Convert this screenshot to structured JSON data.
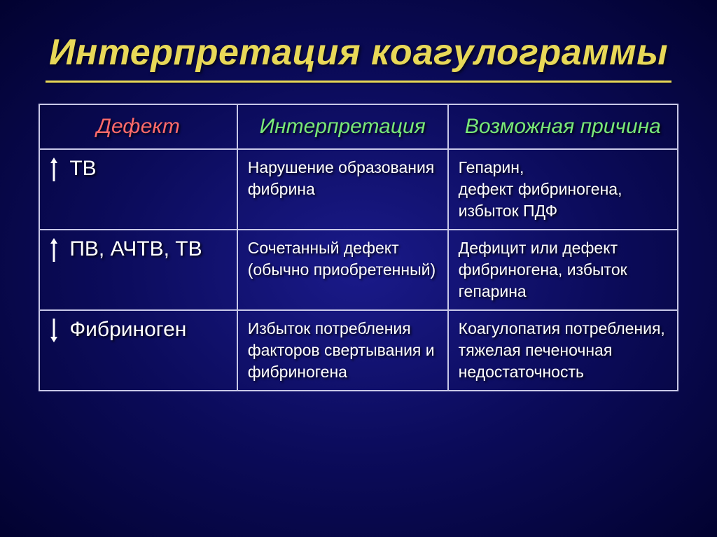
{
  "title": "Интерпретация коагулограммы",
  "colors": {
    "title_color": "#e8d858",
    "header_defect_color": "#ff6a6a",
    "header_other_color": "#78e878",
    "cell_text_color": "#ffffff",
    "border_color": "#c8c8e8",
    "bg_gradient_inner": "#1a1a8a",
    "bg_gradient_mid": "#0b0b5a",
    "bg_gradient_outer": "#020230"
  },
  "table": {
    "headers": {
      "defect": "Дефект",
      "interpretation": "Интерпретация",
      "cause": "Возможная причина"
    },
    "header_fontsize": 30,
    "defect_fontsize": 30,
    "body_fontsize": 23,
    "column_widths_pct": [
      31,
      33,
      36
    ],
    "rows": [
      {
        "arrow": "up",
        "defect": "ТВ",
        "interpretation": "Нарушение образования фибрина",
        "cause": "Гепарин,\nдефект фибриногена, избыток ПДФ"
      },
      {
        "arrow": "up",
        "defect": "ПВ, АЧТВ, ТВ",
        "interpretation": "Сочетанный дефект\n(обычно приобретенный)",
        "cause": "Дефицит или дефект фибриногена, избыток гепарина"
      },
      {
        "arrow": "down",
        "defect": "Фибриноген",
        "interpretation": "Избыток потребления факторов свертывания и фибриногена",
        "cause": "Коагулопатия потребления,\nтяжелая печеночная недостаточность"
      }
    ]
  }
}
